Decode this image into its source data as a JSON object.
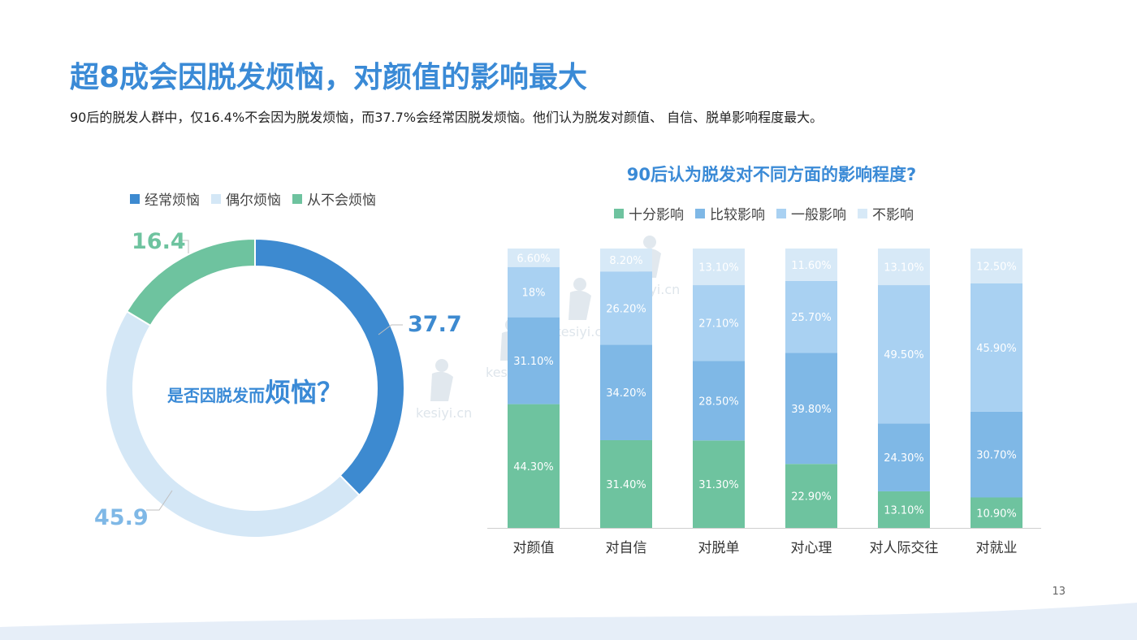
{
  "title": "超8成会因脱发烦恼，对颜值的影响最大",
  "subtitle": "90后的脱发人群中，仅16.4%不会因为脱发烦恼，而37.7%会经常因脱发烦恼。他们认为脱发对颜值、 自信、脱单影响程度最大。",
  "page_number": "13",
  "watermark_text": "kesiyi.cn",
  "colors": {
    "title": "#3a8ad6",
    "often": "#3d8ad0",
    "sometimes": "#d4e7f6",
    "never": "#6ec39f",
    "very": "#6ec39f",
    "fairly": "#7fb8e6",
    "general": "#a9d1f2",
    "none": "#d7e9f7"
  },
  "chart_data": [
    {
      "type": "pie",
      "center_label": {
        "prefix": "是否因脱发而",
        "emphasis": "烦恼？"
      },
      "legend": [
        "经常烦恼",
        "偶尔烦恼",
        "从不会烦恼"
      ],
      "slices": [
        {
          "label": "经常烦恼",
          "value": 37.7,
          "display": "37.7",
          "color": "#3d8ad0"
        },
        {
          "label": "偶尔烦恼",
          "value": 45.9,
          "display": "45.9",
          "color": "#d4e7f6"
        },
        {
          "label": "从不会烦恼",
          "value": 16.4,
          "display": "16.4",
          "color": "#6ec39f"
        }
      ],
      "legend_placement": "top-left"
    },
    {
      "type": "bar",
      "stacked": true,
      "title": "90后认为脱发对不同方面的影响程度?",
      "legend_placement": "top",
      "categories": [
        "对颜值",
        "对自信",
        "对脱单",
        "对心理",
        "对人际交往",
        "对就业"
      ],
      "ylim": [
        0,
        100
      ],
      "series": [
        {
          "name": "十分影响",
          "color": "#6ec39f",
          "values": [
            44.3,
            31.4,
            31.3,
            22.9,
            13.1,
            10.9
          ],
          "labels": [
            "44.30%",
            "31.40%",
            "31.30%",
            "22.90%",
            "13.10%",
            "10.90%"
          ]
        },
        {
          "name": "比较影响",
          "color": "#7fb8e6",
          "values": [
            31.1,
            34.2,
            28.5,
            39.8,
            24.3,
            30.7
          ],
          "labels": [
            "31.10%",
            "34.20%",
            "28.50%",
            "39.80%",
            "24.30%",
            "30.70%"
          ]
        },
        {
          "name": "一般影响",
          "color": "#a9d1f2",
          "values": [
            18.0,
            26.2,
            27.1,
            25.7,
            49.5,
            45.9
          ],
          "labels": [
            "18%",
            "26.20%",
            "27.10%",
            "25.70%",
            "49.50%",
            "45.90%"
          ]
        },
        {
          "name": "不影响",
          "color": "#d7e9f7",
          "values": [
            6.6,
            8.2,
            13.1,
            11.6,
            13.1,
            12.5
          ],
          "labels": [
            "6.60%",
            "8.20%",
            "13.10%",
            "11.60%",
            "13.10%",
            "12.50%"
          ]
        }
      ]
    }
  ]
}
